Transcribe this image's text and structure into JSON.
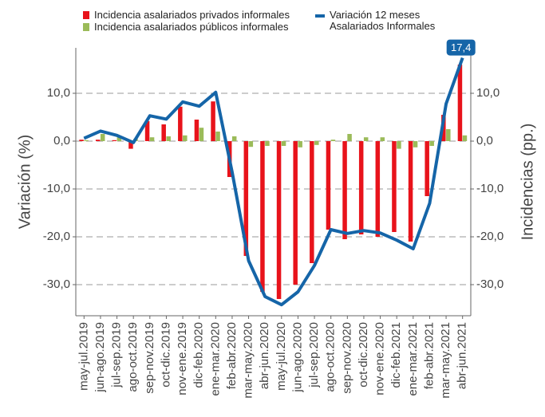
{
  "chart_data": {
    "type": "bar",
    "categories": [
      "may-jul.2019",
      "jun-ago.2019",
      "jul-sep.2019",
      "ago-oct.2019",
      "sep-nov.2019",
      "oct-dic.2019",
      "nov-ene.2019",
      "dic-feb.2020",
      "ene-mar.2020",
      "feb-abr.2020",
      "mar-may.2020",
      "abr-jun.2020",
      "may-jul.2020",
      "jun-ago.2020",
      "jul-sep.2020",
      "ago-oct.2020",
      "sep-nov.2020",
      "oct-dic.2020",
      "nov-ene.2020",
      "dic-feb.2021",
      "ene-mar.2021",
      "feb-abr.2021",
      "mar-may.2021",
      "abr-jun.2021"
    ],
    "series": [
      {
        "name": "Incidencia asalariados privados informales",
        "type": "bar",
        "axis": "y2",
        "color": "#e8131b",
        "values": [
          0.3,
          0.3,
          0.2,
          -1.6,
          4.2,
          3.5,
          7.2,
          4.5,
          8.3,
          -7.5,
          -24,
          -31.5,
          -33,
          -30,
          -25.5,
          -18.5,
          -20.5,
          -19.5,
          -20,
          -19,
          -21,
          -11.5,
          5.5,
          16
        ]
      },
      {
        "name": "Incidencia asalariados públicos informales",
        "type": "bar",
        "axis": "y2",
        "color": "#9bbb59",
        "values": [
          0.2,
          1.5,
          0.8,
          0.5,
          0.8,
          1,
          1.2,
          2.8,
          2,
          1,
          -1.2,
          -1,
          -1,
          -1.3,
          -0.8,
          0.3,
          1.5,
          0.8,
          0.8,
          -1.6,
          -1.3,
          -1,
          2.5,
          1.2
        ]
      },
      {
        "name": "Variación 12 meses Asalariados Informales",
        "type": "line",
        "color": "#1565a8",
        "values": [
          0.6,
          2.1,
          1.2,
          -0.3,
          5.3,
          4.6,
          8.2,
          7.3,
          10.2,
          -6.5,
          -25,
          -32.5,
          -34.2,
          -31.5,
          -26,
          -18.5,
          -19.3,
          -18.7,
          -19.2,
          -20.7,
          -22.5,
          -13,
          7.8,
          17.4
        ],
        "value_labels": [
          null,
          null,
          null,
          null,
          null,
          null,
          null,
          null,
          null,
          null,
          null,
          null,
          null,
          null,
          null,
          null,
          null,
          null,
          null,
          null,
          null,
          null,
          null,
          "17,4"
        ]
      }
    ],
    "y_label": "Variación (%)",
    "y2_label": "Incidencias (pp.)",
    "ylim": [
      -36.5,
      19.5
    ],
    "y2lim": [
      -36.5,
      19.5
    ],
    "yticks": [
      {
        "value": -30,
        "label": "-30,0"
      },
      {
        "value": -20,
        "label": "-20,0"
      },
      {
        "value": -10,
        "label": "-10,0"
      },
      {
        "value": 0,
        "label": "0,0"
      },
      {
        "value": 10,
        "label": "10,0"
      }
    ],
    "y2ticks": [
      {
        "value": -30,
        "label": "-30,0"
      },
      {
        "value": -20,
        "label": "-20,0"
      },
      {
        "value": -10,
        "label": "-10,0"
      },
      {
        "value": 0,
        "label": "0,0"
      },
      {
        "value": 10,
        "label": "10,0"
      }
    ],
    "grid": true
  }
}
